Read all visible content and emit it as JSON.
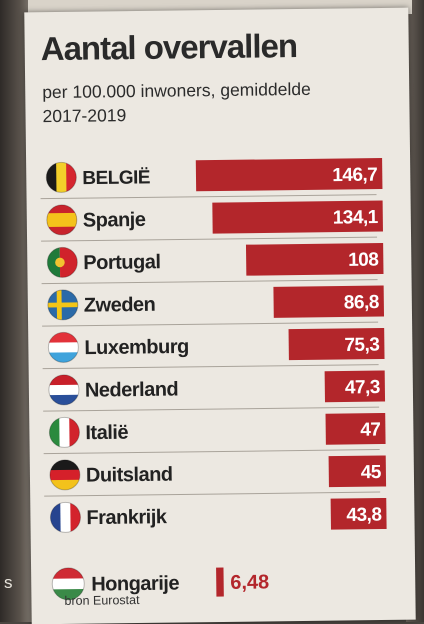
{
  "page": {
    "edge_letter": "s"
  },
  "chart_data": {
    "type": "bar",
    "title": "Aantal overvallen",
    "subtitle": "per 100.000 inwoners, gemiddelde 2017-2019",
    "categories": [
      "BELGIË",
      "Spanje",
      "Portugal",
      "Zweden",
      "Luxemburg",
      "Nederland",
      "Italië",
      "Duitsland",
      "Frankrijk"
    ],
    "values": [
      146.7,
      134.1,
      108,
      86.8,
      75.3,
      47.3,
      47,
      45,
      43.8
    ],
    "value_labels": [
      "146,7",
      "134,1",
      "108",
      "86,8",
      "75,3",
      "47,3",
      "47",
      "45",
      "43,8"
    ],
    "highlight": "BELGIË",
    "extra": {
      "category": "Hongarije",
      "value": 6.48,
      "value_label": "6,48"
    },
    "flags": [
      "flag-belgium-icon",
      "flag-spain-icon",
      "flag-portugal-icon",
      "flag-sweden-icon",
      "flag-luxembourg-icon",
      "flag-netherlands-icon",
      "flag-italy-icon",
      "flag-germany-icon",
      "flag-france-icon"
    ],
    "extra_flag": "flag-hungary-icon",
    "source": "bron Eurostat",
    "colors": {
      "bar": "#b3262b",
      "extra_bar": "#b3262b",
      "label_on_bar": "#ffffff",
      "extra_label": "#b3262b",
      "text": "#222222"
    },
    "xlim": [
      0,
      150
    ]
  }
}
